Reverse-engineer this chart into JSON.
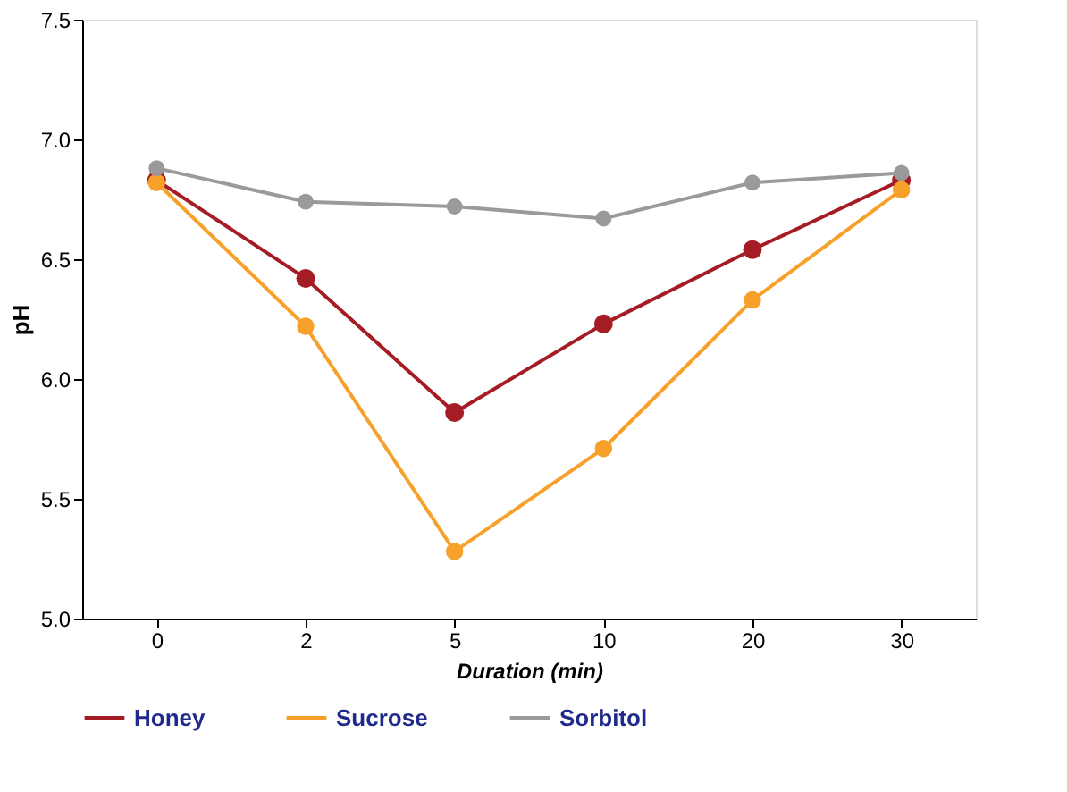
{
  "chart_data": {
    "type": "line",
    "xlabel": "Duration (min)",
    "ylabel": "pH",
    "categories": [
      "0",
      "2",
      "5",
      "10",
      "20",
      "30"
    ],
    "ylim": [
      5.0,
      7.5
    ],
    "yticks": [
      {
        "value": 5,
        "label": "5.0"
      },
      5.5,
      {
        "value": 6,
        "label": "6.0"
      },
      6.5,
      {
        "value": 7,
        "label": "7.0"
      },
      7.5
    ],
    "legend": "bottom",
    "marker": "circle",
    "grid": false,
    "series": [
      {
        "name": "Honey",
        "color": "#a51c24",
        "values": [
          6.83,
          6.42,
          5.86,
          6.23,
          6.54,
          6.83
        ]
      },
      {
        "name": "Sucrose",
        "color": "#f7a02a",
        "values": [
          6.82,
          6.22,
          5.28,
          5.71,
          6.33,
          6.79
        ]
      },
      {
        "name": "Sorbitol",
        "color": "#9a9a9a",
        "values": [
          6.88,
          6.74,
          6.72,
          6.67,
          6.82,
          6.86
        ]
      }
    ]
  }
}
